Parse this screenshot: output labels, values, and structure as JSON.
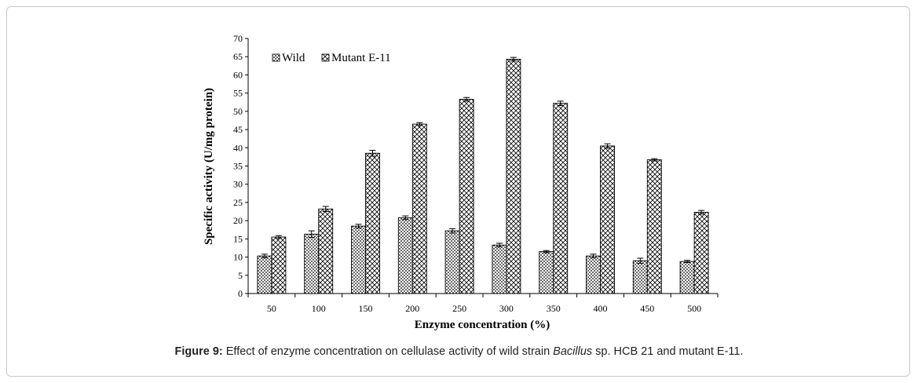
{
  "caption": {
    "label": "Figure 9:",
    "before": " Effect of enzyme concentration on cellulase activity of wild strain ",
    "italic": "Bacillus",
    "after": " sp. HCB 21 and mutant E-11."
  },
  "chart_data": {
    "type": "bar",
    "title": "",
    "xlabel": "Enzyme concentration (%)",
    "ylabel": "Specific activity (U/mg protein)",
    "ylim": [
      0,
      70
    ],
    "yticks": [
      0,
      5,
      10,
      15,
      20,
      25,
      30,
      35,
      40,
      45,
      50,
      55,
      60,
      65,
      70
    ],
    "categories": [
      "50",
      "100",
      "150",
      "200",
      "250",
      "300",
      "350",
      "400",
      "450",
      "500"
    ],
    "series": [
      {
        "name": "Wild",
        "pattern": "dots",
        "values": [
          10.3,
          16.3,
          18.5,
          20.8,
          17.2,
          13.3,
          11.5,
          10.3,
          9.0,
          8.8
        ],
        "errors": [
          0.5,
          0.9,
          0.5,
          0.5,
          0.6,
          0.5,
          0.3,
          0.5,
          0.7,
          0.3
        ]
      },
      {
        "name": "Mutant E-11",
        "pattern": "crosshatch",
        "values": [
          15.5,
          23.2,
          38.5,
          46.5,
          53.3,
          64.3,
          52.2,
          40.5,
          36.7,
          22.3
        ],
        "errors": [
          0.4,
          0.7,
          0.8,
          0.4,
          0.5,
          0.5,
          0.6,
          0.6,
          0.3,
          0.5
        ]
      }
    ],
    "grid": false,
    "legend_position": "top-left",
    "colors": {
      "axis": "#000000",
      "bar_fill": "#ffffff",
      "pattern": "#000000"
    }
  }
}
